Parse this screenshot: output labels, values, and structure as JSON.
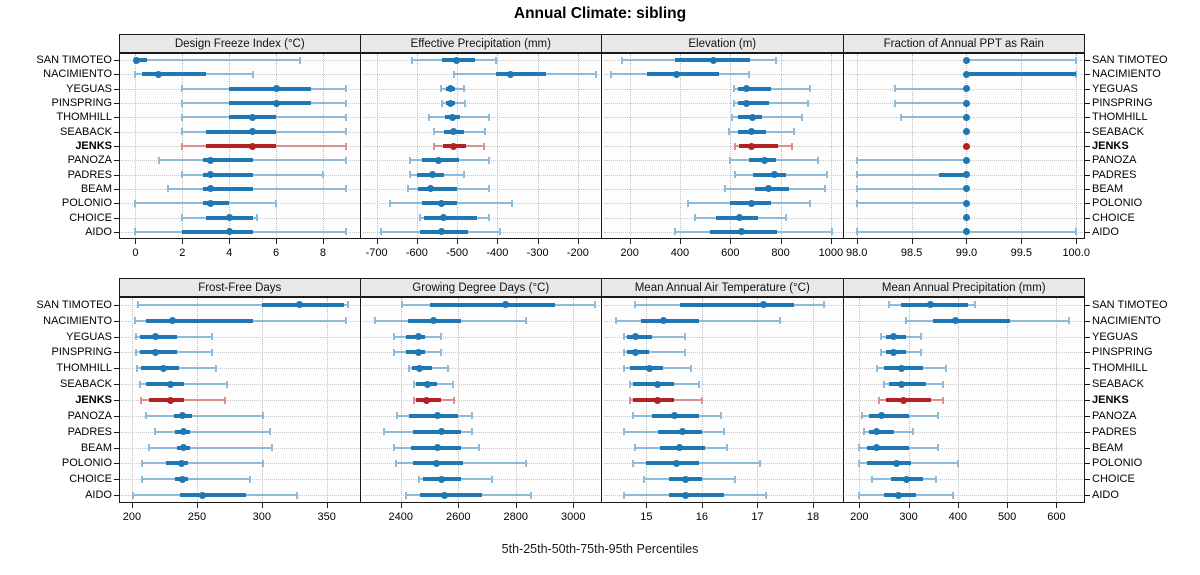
{
  "title": "Annual Climate: sibling",
  "caption": "5th-25th-50th-75th-95th Percentiles",
  "colors": {
    "blue": "#1f77b4",
    "blue_light": "#8fbbd9",
    "red": "#b22222",
    "red_light": "#d99090",
    "strip_bg": "#e8e8e8",
    "panel_border": "#1a1a1a",
    "grid": "#bdbdbd",
    "text": "#000000"
  },
  "chart_data": {
    "type": "trellis-dotplot",
    "percentiles": [
      5,
      25,
      50,
      75,
      95
    ],
    "legend_note": "5th-25th-50th-75th-95th Percentiles",
    "highlight": {
      "site": "JENKS",
      "color": "#b22222"
    },
    "sites": [
      "SAN TIMOTEO",
      "NACIMIENTO",
      "YEGUAS",
      "PINSPRING",
      "THOMHILL",
      "SEABACK",
      "JENKS",
      "PANOZA",
      "PADRES",
      "BEAM",
      "POLONIO",
      "CHOICE",
      "AIDO"
    ],
    "panels": [
      {
        "title": "Design Freeze Index (°C)",
        "ticks": [
          0,
          2,
          4,
          6,
          8
        ],
        "tick_labels": [
          "0",
          "2",
          "4",
          "6",
          "8"
        ],
        "xlim": [
          -0.7,
          9.6
        ],
        "values": [
          [
            0,
            0,
            0.05,
            0.5,
            7
          ],
          [
            0,
            0.3,
            1,
            3,
            5
          ],
          [
            2,
            4,
            6,
            7.5,
            9
          ],
          [
            2,
            4,
            6,
            7.5,
            9
          ],
          [
            2,
            4,
            5,
            6,
            9
          ],
          [
            2,
            3,
            5,
            6,
            9
          ],
          [
            2,
            3,
            5,
            6,
            9
          ],
          [
            1,
            2.9,
            3.2,
            5,
            9
          ],
          [
            2,
            2.9,
            3.2,
            5,
            8
          ],
          [
            1.4,
            2.9,
            3.2,
            5,
            9
          ],
          [
            0,
            2.9,
            3.2,
            4,
            6
          ],
          [
            2,
            3,
            4,
            5,
            5.2
          ],
          [
            0,
            2,
            4,
            5,
            9
          ]
        ]
      },
      {
        "title": "Effective Precipitation (mm)",
        "ticks": [
          -700,
          -600,
          -500,
          -400,
          -300,
          -200
        ],
        "tick_labels": [
          "-700",
          "-600",
          "-500",
          "-400",
          "-300",
          "-200"
        ],
        "xlim": [
          -740,
          -140
        ],
        "values": [
          [
            -612,
            -537,
            -502,
            -455,
            -404
          ],
          [
            -507,
            -404,
            -368,
            -279,
            -155
          ],
          [
            -540,
            -528,
            -517,
            -505,
            -483
          ],
          [
            -538,
            -527,
            -516,
            -504,
            -481
          ],
          [
            -571,
            -529,
            -511,
            -492,
            -421
          ],
          [
            -558,
            -533,
            -509,
            -483,
            -430
          ],
          [
            -557,
            -536,
            -509,
            -478,
            -432
          ],
          [
            -617,
            -588,
            -545,
            -495,
            -420
          ],
          [
            -617,
            -600,
            -562,
            -533,
            -483
          ],
          [
            -621,
            -596,
            -565,
            -500,
            -421
          ],
          [
            -667,
            -588,
            -540,
            -500,
            -363
          ],
          [
            -593,
            -583,
            -533,
            -450,
            -421
          ],
          [
            -688,
            -592,
            -539,
            -473,
            -393
          ]
        ]
      },
      {
        "title": "Elevation (m)",
        "ticks": [
          200,
          400,
          600,
          800,
          1000
        ],
        "tick_labels": [
          "200",
          "400",
          "600",
          "800",
          "1000"
        ],
        "xlim": [
          90,
          1050
        ],
        "values": [
          [
            170,
            380,
            535,
            680,
            780
          ],
          [
            125,
            270,
            385,
            557,
            676
          ],
          [
            615,
            630,
            665,
            760,
            915
          ],
          [
            615,
            630,
            665,
            755,
            910
          ],
          [
            605,
            630,
            690,
            725,
            885
          ],
          [
            595,
            630,
            685,
            740,
            855
          ],
          [
            620,
            635,
            685,
            790,
            845
          ],
          [
            600,
            675,
            735,
            780,
            950
          ],
          [
            620,
            690,
            775,
            820,
            985
          ],
          [
            580,
            700,
            750,
            835,
            975
          ],
          [
            430,
            600,
            685,
            760,
            915
          ],
          [
            460,
            545,
            635,
            710,
            820
          ],
          [
            380,
            520,
            645,
            785,
            1005
          ]
        ]
      },
      {
        "title": "Fraction of Annual PPT as Rain",
        "ticks": [
          98.0,
          98.5,
          99.0,
          99.5,
          100.0
        ],
        "tick_labels": [
          "98.0",
          "98.5",
          "99.0",
          "99.5",
          "100.0"
        ],
        "xlim": [
          97.88,
          100.08
        ],
        "values": [
          [
            99,
            99,
            99,
            99,
            100
          ],
          [
            99,
            99,
            99,
            100,
            100
          ],
          [
            98.35,
            99,
            99,
            99,
            99
          ],
          [
            98.35,
            99,
            99,
            99,
            99
          ],
          [
            98.4,
            99,
            99,
            99,
            99
          ],
          [
            99,
            99,
            99,
            99,
            99
          ],
          [
            99,
            99,
            99,
            99,
            99
          ],
          [
            98,
            99,
            99,
            99,
            99
          ],
          [
            98,
            98.75,
            99,
            99,
            99
          ],
          [
            98,
            99,
            99,
            99,
            99
          ],
          [
            98,
            99,
            99,
            99,
            99
          ],
          [
            99,
            99,
            99,
            99,
            99
          ],
          [
            98,
            99,
            99,
            99,
            100
          ]
        ]
      },
      {
        "title": "Frost-Free Days",
        "ticks": [
          200,
          250,
          300,
          350
        ],
        "tick_labels": [
          "200",
          "250",
          "300",
          "350"
        ],
        "xlim": [
          190,
          376
        ],
        "values": [
          [
            205,
            300,
            329,
            363,
            366
          ],
          [
            202,
            211,
            231,
            293,
            365
          ],
          [
            203,
            206,
            218,
            235,
            262
          ],
          [
            203,
            206,
            218,
            235,
            262
          ],
          [
            204,
            207,
            224,
            236,
            265
          ],
          [
            206,
            211,
            230,
            240,
            273
          ],
          [
            207,
            213,
            230,
            240,
            272
          ],
          [
            211,
            232,
            239,
            246,
            301
          ],
          [
            218,
            233,
            240,
            245,
            306
          ],
          [
            213,
            235,
            240,
            245,
            308
          ],
          [
            208,
            226,
            238,
            243,
            301
          ],
          [
            208,
            233,
            239,
            243,
            291
          ],
          [
            201,
            237,
            254,
            288,
            327
          ]
        ]
      },
      {
        "title": "Growing Degree Days (°C)",
        "ticks": [
          2400,
          2600,
          2800,
          3000
        ],
        "tick_labels": [
          "2400",
          "2600",
          "2800",
          "3000"
        ],
        "xlim": [
          2260,
          3100
        ],
        "values": [
          [
            2405,
            2500,
            2765,
            2935,
            3075
          ],
          [
            2310,
            2424,
            2514,
            2611,
            2834
          ],
          [
            2376,
            2418,
            2460,
            2484,
            2539
          ],
          [
            2376,
            2418,
            2460,
            2484,
            2539
          ],
          [
            2430,
            2440,
            2466,
            2508,
            2563
          ],
          [
            2445,
            2454,
            2494,
            2527,
            2581
          ],
          [
            2445,
            2452,
            2488,
            2539,
            2584
          ],
          [
            2388,
            2430,
            2529,
            2599,
            2647
          ],
          [
            2343,
            2442,
            2542,
            2611,
            2647
          ],
          [
            2376,
            2436,
            2527,
            2611,
            2673
          ],
          [
            2382,
            2442,
            2524,
            2617,
            2834
          ],
          [
            2464,
            2478,
            2542,
            2611,
            2719
          ],
          [
            2418,
            2466,
            2551,
            2683,
            2852
          ]
        ]
      },
      {
        "title": "Mean Annual Air Temperature (°C)",
        "ticks": [
          15,
          16,
          17,
          18
        ],
        "tick_labels": [
          "15",
          "16",
          "17",
          "18"
        ],
        "xlim": [
          14.2,
          18.55
        ],
        "values": [
          [
            14.8,
            15.6,
            17.1,
            17.65,
            18.2
          ],
          [
            14.45,
            14.9,
            15.3,
            15.95,
            17.4
          ],
          [
            14.6,
            14.65,
            14.8,
            15.1,
            15.7
          ],
          [
            14.6,
            14.65,
            14.8,
            15.05,
            15.7
          ],
          [
            14.6,
            14.7,
            15.05,
            15.3,
            15.8
          ],
          [
            14.7,
            14.75,
            15.2,
            15.5,
            15.95
          ],
          [
            14.7,
            14.75,
            15.2,
            15.5,
            16.0
          ],
          [
            14.75,
            15.1,
            15.5,
            15.95,
            16.35
          ],
          [
            14.6,
            15.2,
            15.65,
            16.0,
            16.4
          ],
          [
            14.8,
            15.25,
            15.6,
            16.05,
            16.45
          ],
          [
            14.75,
            15.0,
            15.55,
            15.95,
            17.05
          ],
          [
            14.95,
            15.4,
            15.7,
            16.0,
            16.6
          ],
          [
            14.6,
            15.4,
            15.7,
            16.4,
            17.15
          ]
        ]
      },
      {
        "title": "Mean Annual Precipitation (mm)",
        "ticks": [
          200,
          300,
          400,
          500,
          600
        ],
        "tick_labels": [
          "200",
          "300",
          "400",
          "500",
          "600"
        ],
        "xlim": [
          168,
          658
        ],
        "values": [
          [
            260,
            285,
            345,
            420,
            435
          ],
          [
            295,
            350,
            395,
            505,
            625
          ],
          [
            245,
            255,
            270,
            295,
            325
          ],
          [
            245,
            255,
            270,
            295,
            325
          ],
          [
            235,
            250,
            285,
            330,
            375
          ],
          [
            250,
            260,
            285,
            335,
            370
          ],
          [
            240,
            255,
            290,
            345,
            370
          ],
          [
            205,
            220,
            245,
            300,
            360
          ],
          [
            210,
            220,
            235,
            270,
            310
          ],
          [
            200,
            215,
            235,
            300,
            360
          ],
          [
            200,
            215,
            275,
            305,
            400
          ],
          [
            225,
            265,
            295,
            330,
            355
          ],
          [
            200,
            250,
            280,
            315,
            390
          ]
        ]
      }
    ]
  }
}
